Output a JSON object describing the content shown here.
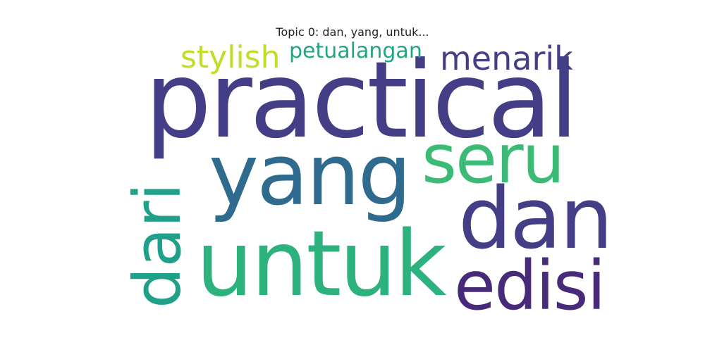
{
  "title": "Topic 0: dan, yang, untuk...",
  "words": [
    {
      "id": "practical",
      "text": "practical",
      "color": "#433e85"
    },
    {
      "id": "yang",
      "text": "yang",
      "color": "#2f6b8e"
    },
    {
      "id": "seru",
      "text": "seru",
      "color": "#3bbb75"
    },
    {
      "id": "dan",
      "text": "dan",
      "color": "#433e85"
    },
    {
      "id": "untuk",
      "text": "untuk",
      "color": "#2db27d"
    },
    {
      "id": "edisi",
      "text": "edisi",
      "color": "#472a79"
    },
    {
      "id": "menarik",
      "text": "menarik",
      "color": "#433e85"
    },
    {
      "id": "stylish",
      "text": "stylish",
      "color": "#bddf26"
    },
    {
      "id": "petualangan",
      "text": "petualangan",
      "color": "#21a685"
    },
    {
      "id": "dari",
      "text": "dari",
      "color": "#1fa088"
    }
  ]
}
